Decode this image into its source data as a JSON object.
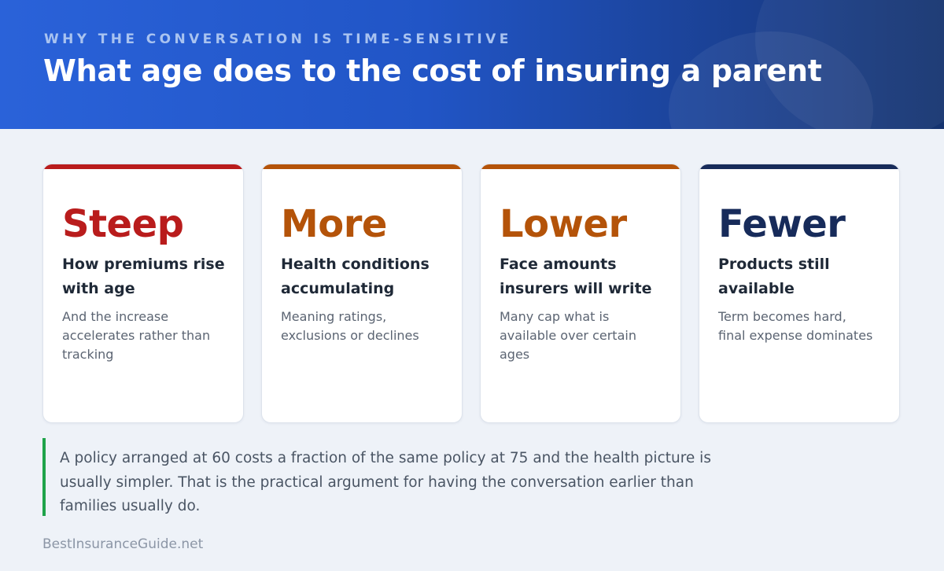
{
  "header": {
    "kicker": "WHY THE CONVERSATION IS TIME-SENSITIVE",
    "title": "What age does to the cost of insuring a parent"
  },
  "cards": [
    {
      "headline": "Steep",
      "subtitle": "How premiums rise with age",
      "description": "And the increase accelerates rather than tracking",
      "accent_color": "#b91c1c"
    },
    {
      "headline": "More",
      "subtitle": "Health conditions accumulating",
      "description": "Meaning ratings, exclusions or declines",
      "accent_color": "#b45309"
    },
    {
      "headline": "Lower",
      "subtitle": "Face amounts insurers will write",
      "description": "Many cap what is available over certain ages",
      "accent_color": "#b45309"
    },
    {
      "headline": "Fewer",
      "subtitle": "Products still available",
      "description": "Term becomes hard, final expense dominates",
      "accent_color": "#172b5a"
    }
  ],
  "note": {
    "text": "A policy arranged at 60 costs a fraction of the same policy at 75 and the health picture is usually simpler. That is the practical argument for having the conversation earlier than families usually do.",
    "accent_color": "#1fa34a"
  },
  "footer": {
    "brand": "BestInsuranceGuide.net"
  }
}
